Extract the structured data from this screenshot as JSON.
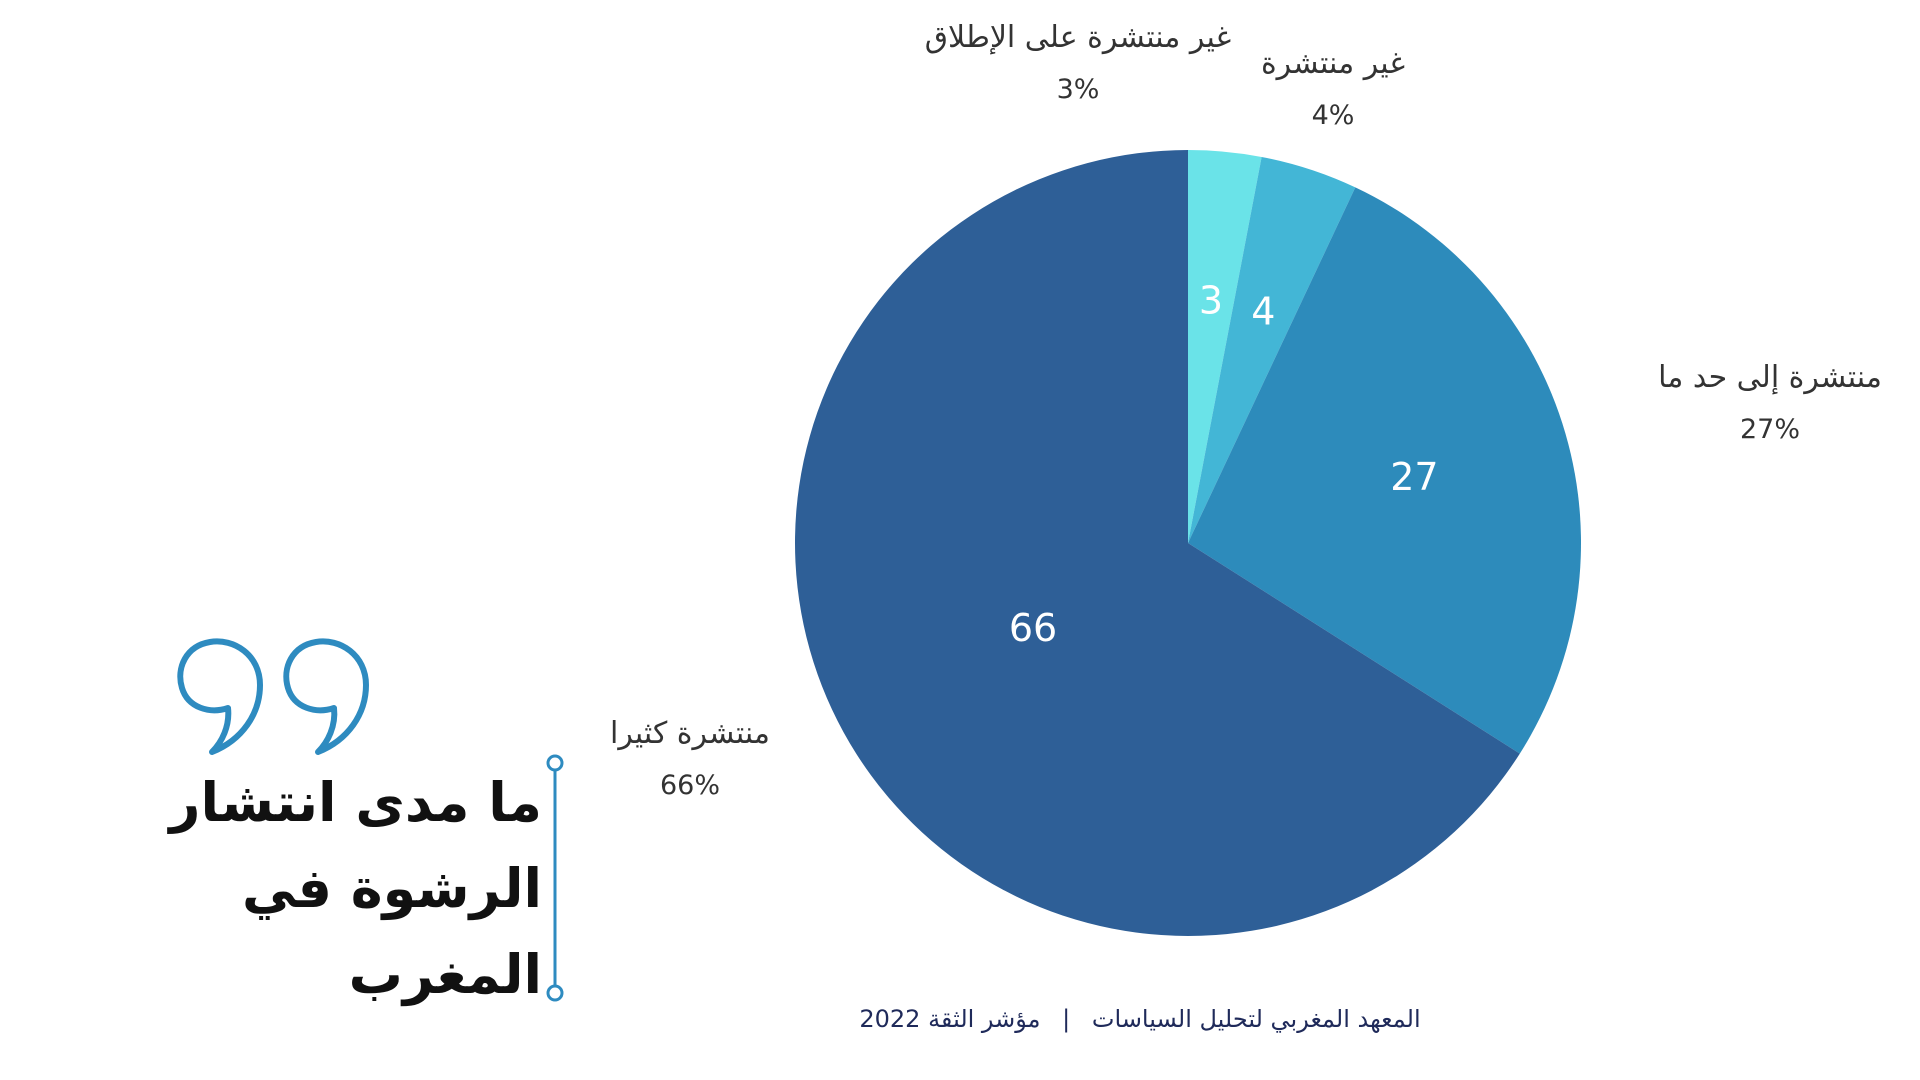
{
  "chart_data": {
    "type": "pie",
    "title": "ما مدى انتشار الرشوة في المغرب",
    "start_angle_deg": 0,
    "direction": "clockwise",
    "slices": [
      {
        "label": "غير منتشرة على الإطلاق",
        "value": 3,
        "value_text": "3",
        "percent_text": "3%",
        "color": "#6ae3e8"
      },
      {
        "label": "غير منتشرة",
        "value": 4,
        "value_text": "4",
        "percent_text": "4%",
        "color": "#43b6d6"
      },
      {
        "label": "منتشرة إلى حد ما",
        "value": 27,
        "value_text": "27",
        "percent_text": "27%",
        "color": "#2d8bbb"
      },
      {
        "label": "منتشرة كثيرا",
        "value": 66,
        "value_text": "66",
        "percent_text": "66%",
        "color": "#2e5f97"
      }
    ]
  },
  "title": {
    "lines": [
      "ما مدى انتشار",
      "الرشوة في",
      "المغرب"
    ]
  },
  "footer": {
    "institute": "المعهد المغربي لتحليل السياسات",
    "separator": "|",
    "index": "مؤشر الثقة 2022"
  },
  "decor": {
    "accent_color": "#2e8bc0",
    "quote_icon": "quote-icon",
    "bracket_icon": "bracket-line-icon"
  }
}
